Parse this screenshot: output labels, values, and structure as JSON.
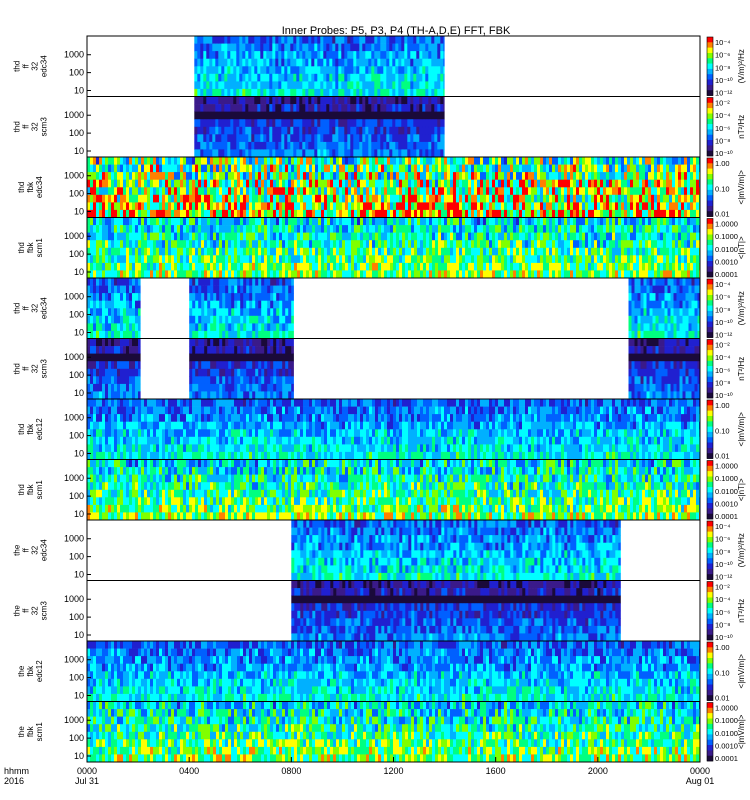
{
  "title": "Inner Probes: P5, P3, P4 (TH-A,D,E) FFT, FBK",
  "x_axis": {
    "ticks": [
      {
        "t": 0,
        "label": "0000",
        "sub": "Jul 31"
      },
      {
        "t": 4,
        "label": "0400",
        "sub": ""
      },
      {
        "t": 8,
        "label": "0800",
        "sub": ""
      },
      {
        "t": 12,
        "label": "1200",
        "sub": ""
      },
      {
        "t": 16,
        "label": "1600",
        "sub": ""
      },
      {
        "t": 20,
        "label": "2000",
        "sub": ""
      },
      {
        "t": 24,
        "label": "0000",
        "sub": "Aug 01"
      }
    ],
    "corner_label": "hhmm",
    "corner_year": "2016"
  },
  "colors": {
    "colormap": [
      "#1a0a3a",
      "#3a1a8a",
      "#2020d0",
      "#0060ff",
      "#00b0ff",
      "#00ffff",
      "#00ff80",
      "#80ff00",
      "#ffff00",
      "#ff8000",
      "#ff0000"
    ],
    "background": "#ffffff",
    "axis": "#000000"
  },
  "chart_data": [
    {
      "type": "heatmap",
      "ylabel": [
        "thd",
        "ff",
        "32",
        "edc34"
      ],
      "yticks": [
        "10",
        "100",
        "1000"
      ],
      "cbar_ticks": [
        "10⁻⁴",
        "10⁻⁶",
        "10⁻⁸",
        "10⁻¹⁰",
        "10⁻¹²"
      ],
      "cbar_unit": "(V/m)²/Hz",
      "coverage": [
        [
          4.2,
          14.0
        ]
      ],
      "intensity": "mid"
    },
    {
      "type": "heatmap",
      "ylabel": [
        "thd",
        "ff",
        "32",
        "scm3"
      ],
      "yticks": [
        "10",
        "100",
        "1000"
      ],
      "cbar_ticks": [
        "10⁻²",
        "10⁻⁴",
        "10⁻⁶",
        "10⁻⁸",
        "10⁻¹⁰"
      ],
      "cbar_unit": "nT²/Hz",
      "coverage": [
        [
          4.2,
          14.0
        ]
      ],
      "intensity": "dark"
    },
    {
      "type": "heatmap",
      "ylabel": [
        "thd",
        "fbk",
        "edc34"
      ],
      "yticks": [
        "10",
        "100",
        "1000"
      ],
      "cbar_ticks": [
        "1.00",
        "0.10",
        "0.01"
      ],
      "cbar_unit": "<|mV/m|>",
      "coverage": [
        [
          0,
          24
        ]
      ],
      "intensity": "hot"
    },
    {
      "type": "heatmap",
      "ylabel": [
        "thd",
        "fbk",
        "scm1"
      ],
      "yticks": [
        "10",
        "100",
        "1000"
      ],
      "cbar_ticks": [
        "1.0000",
        "0.1000",
        "0.0100",
        "0.0010",
        "0.0001"
      ],
      "cbar_unit": "<|nT|>",
      "coverage": [
        [
          0,
          24
        ]
      ],
      "intensity": "cool"
    },
    {
      "type": "heatmap",
      "ylabel": [
        "thd",
        "ff",
        "32",
        "edc34"
      ],
      "yticks": [
        "10",
        "100",
        "1000"
      ],
      "cbar_ticks": [
        "10⁻⁴",
        "10⁻⁶",
        "10⁻⁸",
        "10⁻¹⁰",
        "10⁻¹²"
      ],
      "cbar_unit": "(V/m)²/Hz",
      "coverage": [
        [
          0,
          2.1
        ],
        [
          4.0,
          8.1
        ],
        [
          21.2,
          24
        ]
      ],
      "intensity": "mid"
    },
    {
      "type": "heatmap",
      "ylabel": [
        "thd",
        "ff",
        "32",
        "scm3"
      ],
      "yticks": [
        "10",
        "100",
        "1000"
      ],
      "cbar_ticks": [
        "10⁻²",
        "10⁻⁴",
        "10⁻⁶",
        "10⁻⁸",
        "10⁻¹⁰"
      ],
      "cbar_unit": "nT²/Hz",
      "coverage": [
        [
          0,
          2.1
        ],
        [
          4.0,
          8.1
        ],
        [
          21.2,
          24
        ]
      ],
      "intensity": "dark"
    },
    {
      "type": "heatmap",
      "ylabel": [
        "thd",
        "fbk",
        "edc12"
      ],
      "yticks": [
        "10",
        "100",
        "1000"
      ],
      "cbar_ticks": [
        "1.00",
        "0.10",
        "0.01"
      ],
      "cbar_unit": "<|mV/m|>",
      "coverage": [
        [
          0,
          24
        ]
      ],
      "intensity": "mid"
    },
    {
      "type": "heatmap",
      "ylabel": [
        "thd",
        "fbk",
        "scm1"
      ],
      "yticks": [
        "10",
        "100",
        "1000"
      ],
      "cbar_ticks": [
        "1.0000",
        "0.1000",
        "0.0100",
        "0.0010",
        "0.0001"
      ],
      "cbar_unit": "<|nT|>",
      "coverage": [
        [
          0,
          24
        ]
      ],
      "intensity": "cool"
    },
    {
      "type": "heatmap",
      "ylabel": [
        "the",
        "ff",
        "32",
        "edc34"
      ],
      "yticks": [
        "10",
        "100",
        "1000"
      ],
      "cbar_ticks": [
        "10⁻⁴",
        "10⁻⁶",
        "10⁻⁸",
        "10⁻¹⁰",
        "10⁻¹²"
      ],
      "cbar_unit": "(V/m)²/Hz",
      "coverage": [
        [
          8.0,
          20.9
        ]
      ],
      "intensity": "mid"
    },
    {
      "type": "heatmap",
      "ylabel": [
        "the",
        "ff",
        "32",
        "scm3"
      ],
      "yticks": [
        "10",
        "100",
        "1000"
      ],
      "cbar_ticks": [
        "10⁻²",
        "10⁻⁴",
        "10⁻⁶",
        "10⁻⁸",
        "10⁻¹⁰"
      ],
      "cbar_unit": "nT²/Hz",
      "coverage": [
        [
          8.0,
          20.9
        ]
      ],
      "intensity": "dark"
    },
    {
      "type": "heatmap",
      "ylabel": [
        "the",
        "fbk",
        "edc12"
      ],
      "yticks": [
        "10",
        "100",
        "1000"
      ],
      "cbar_ticks": [
        "1.00",
        "0.10",
        "0.01"
      ],
      "cbar_unit": "<|mV/m|>",
      "coverage": [
        [
          0,
          24
        ]
      ],
      "intensity": "mid"
    },
    {
      "type": "heatmap",
      "ylabel": [
        "the",
        "fbk",
        "scm1"
      ],
      "yticks": [
        "10",
        "100",
        "1000"
      ],
      "cbar_ticks": [
        "1.0000",
        "0.1000",
        "0.0100",
        "0.0010",
        "0.0001"
      ],
      "cbar_unit": "<|mV/m|>",
      "coverage": [
        [
          0,
          24
        ]
      ],
      "intensity": "cool"
    }
  ]
}
